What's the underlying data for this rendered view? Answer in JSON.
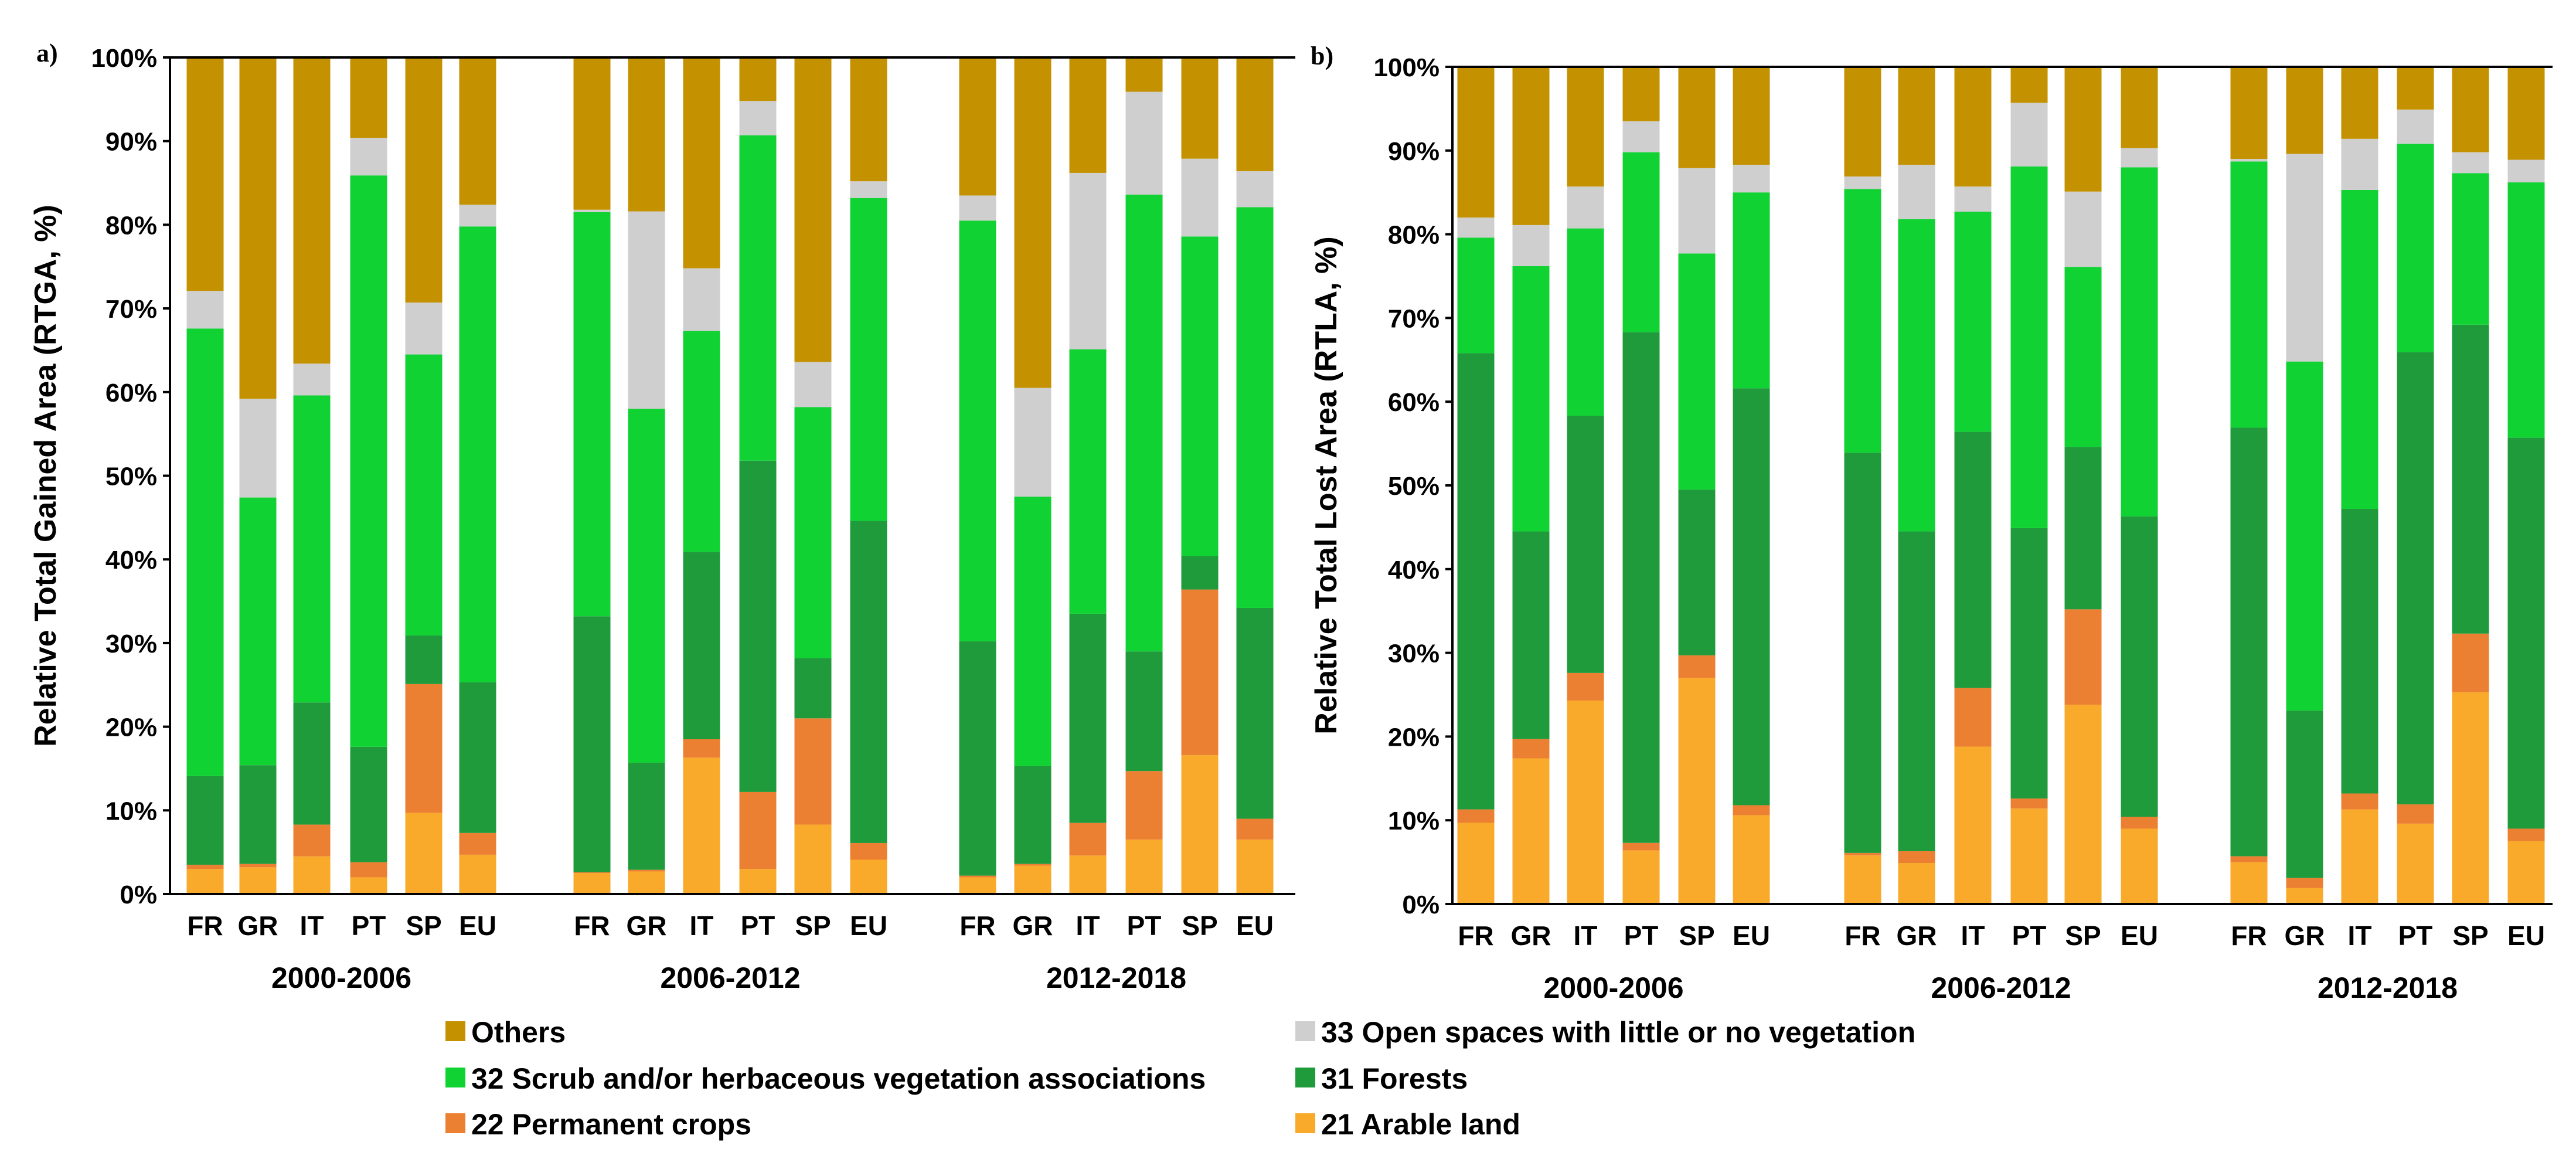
{
  "colors": {
    "arable": "#f9aa2a",
    "permanent": "#ec8032",
    "forests": "#1f9b3c",
    "scrub": "#10d233",
    "open": "#cfcfcf",
    "others": "#c49100"
  },
  "legend": [
    {
      "key": "others",
      "label": "Others"
    },
    {
      "key": "open",
      "label": "33 Open spaces with little or no vegetation"
    },
    {
      "key": "scrub",
      "label": "32 Scrub and/or herbaceous vegetation associations"
    },
    {
      "key": "forests",
      "label": "31 Forests"
    },
    {
      "key": "permanent",
      "label": "22 Permanent crops"
    },
    {
      "key": "arable",
      "label": "21 Arable land"
    }
  ],
  "chart_data": [
    {
      "type": "bar",
      "stacked": true,
      "panel_label": "a)",
      "ylabel": "Relative Total Gained Area (RTGA, %)",
      "ylim": [
        0,
        100
      ],
      "yticks": [
        "0%",
        "10%",
        "20%",
        "30%",
        "40%",
        "50%",
        "60%",
        "70%",
        "80%",
        "90%",
        "100%"
      ],
      "periods": [
        {
          "name": "2000-2006",
          "categories": [
            "FR",
            "GR",
            "IT",
            "PT",
            "SP",
            "EU"
          ],
          "series": {
            "arable": [
              3.0,
              3.2,
              4.5,
              2.0,
              9.7,
              4.7
            ],
            "permanent": [
              0.5,
              0.4,
              3.8,
              1.8,
              15.4,
              2.6
            ],
            "forests": [
              10.6,
              11.8,
              14.6,
              13.8,
              5.8,
              18.0
            ],
            "scrub": [
              53.5,
              32.0,
              36.7,
              68.3,
              33.6,
              54.5
            ],
            "open": [
              4.5,
              11.8,
              3.8,
              4.5,
              6.2,
              2.6
            ],
            "others": [
              27.9,
              40.8,
              36.6,
              9.6,
              29.3,
              17.6
            ]
          }
        },
        {
          "name": "2006-2012",
          "categories": [
            "FR",
            "GR",
            "IT",
            "PT",
            "SP",
            "EU"
          ],
          "series": {
            "arable": [
              2.5,
              2.7,
              16.3,
              3.0,
              8.3,
              4.1
            ],
            "permanent": [
              0.1,
              0.2,
              2.2,
              9.2,
              12.7,
              2.0
            ],
            "forests": [
              30.6,
              12.8,
              22.4,
              39.6,
              7.2,
              38.5
            ],
            "scrub": [
              48.3,
              42.3,
              26.4,
              38.9,
              30.0,
              38.6
            ],
            "open": [
              0.3,
              23.6,
              7.5,
              4.1,
              5.4,
              2.0
            ],
            "others": [
              18.2,
              18.4,
              25.2,
              5.2,
              36.4,
              14.8
            ]
          }
        },
        {
          "name": "2012-2018",
          "categories": [
            "FR",
            "GR",
            "IT",
            "PT",
            "SP",
            "EU"
          ],
          "series": {
            "arable": [
              2.0,
              3.4,
              4.6,
              6.5,
              16.6,
              6.5
            ],
            "permanent": [
              0.2,
              0.2,
              3.9,
              8.2,
              19.8,
              2.5
            ],
            "forests": [
              28.0,
              11.7,
              25.0,
              14.3,
              4.0,
              25.2
            ],
            "scrub": [
              50.3,
              32.2,
              31.6,
              54.6,
              38.2,
              47.9
            ],
            "open": [
              3.0,
              13.0,
              21.1,
              12.3,
              9.3,
              4.3
            ],
            "others": [
              16.5,
              39.5,
              13.8,
              4.1,
              12.1,
              13.6
            ]
          }
        }
      ]
    },
    {
      "type": "bar",
      "stacked": true,
      "panel_label": "b)",
      "ylabel": "Relative Total Lost Area (RTLA, %)",
      "ylim": [
        0,
        100
      ],
      "yticks": [
        "0%",
        "10%",
        "20%",
        "30%",
        "40%",
        "50%",
        "60%",
        "70%",
        "80%",
        "90%",
        "100%"
      ],
      "periods": [
        {
          "name": "2000-2006",
          "categories": [
            "FR",
            "GR",
            "IT",
            "PT",
            "SP",
            "EU"
          ],
          "series": {
            "arable": [
              9.7,
              17.4,
              24.3,
              6.4,
              27.0,
              10.6
            ],
            "permanent": [
              1.6,
              2.3,
              3.3,
              0.9,
              2.7,
              1.2
            ],
            "forests": [
              54.5,
              24.8,
              30.7,
              61.0,
              19.8,
              49.8
            ],
            "scrub": [
              13.8,
              31.7,
              22.4,
              21.5,
              28.2,
              23.4
            ],
            "open": [
              2.4,
              4.9,
              5.0,
              3.7,
              10.2,
              3.3
            ],
            "others": [
              18.0,
              18.9,
              14.3,
              6.5,
              12.1,
              11.7
            ]
          }
        },
        {
          "name": "2006-2012",
          "categories": [
            "FR",
            "GR",
            "IT",
            "PT",
            "SP",
            "EU"
          ],
          "series": {
            "arable": [
              5.8,
              4.9,
              18.8,
              11.4,
              23.8,
              9.0
            ],
            "permanent": [
              0.3,
              1.4,
              7.0,
              1.2,
              11.4,
              1.4
            ],
            "forests": [
              47.8,
              38.2,
              30.6,
              32.3,
              19.4,
              35.9
            ],
            "scrub": [
              31.5,
              37.3,
              26.3,
              43.2,
              21.5,
              41.7
            ],
            "open": [
              1.5,
              6.5,
              3.0,
              7.6,
              9.0,
              2.3
            ],
            "others": [
              13.1,
              11.7,
              14.3,
              4.3,
              14.9,
              9.7
            ]
          }
        },
        {
          "name": "2012-2018",
          "categories": [
            "FR",
            "GR",
            "IT",
            "PT",
            "SP",
            "EU"
          ],
          "series": {
            "arable": [
              5.0,
              1.9,
              11.3,
              9.6,
              25.3,
              7.5
            ],
            "permanent": [
              0.7,
              1.2,
              1.9,
              2.3,
              7.0,
              1.5
            ],
            "forests": [
              51.2,
              20.0,
              34.0,
              54.0,
              36.9,
              46.7
            ],
            "scrub": [
              31.8,
              41.7,
              38.1,
              24.9,
              18.1,
              30.5
            ],
            "open": [
              0.3,
              24.8,
              6.1,
              4.1,
              2.5,
              2.7
            ],
            "others": [
              11.0,
              10.4,
              8.6,
              5.1,
              10.2,
              11.1
            ]
          }
        }
      ]
    }
  ]
}
